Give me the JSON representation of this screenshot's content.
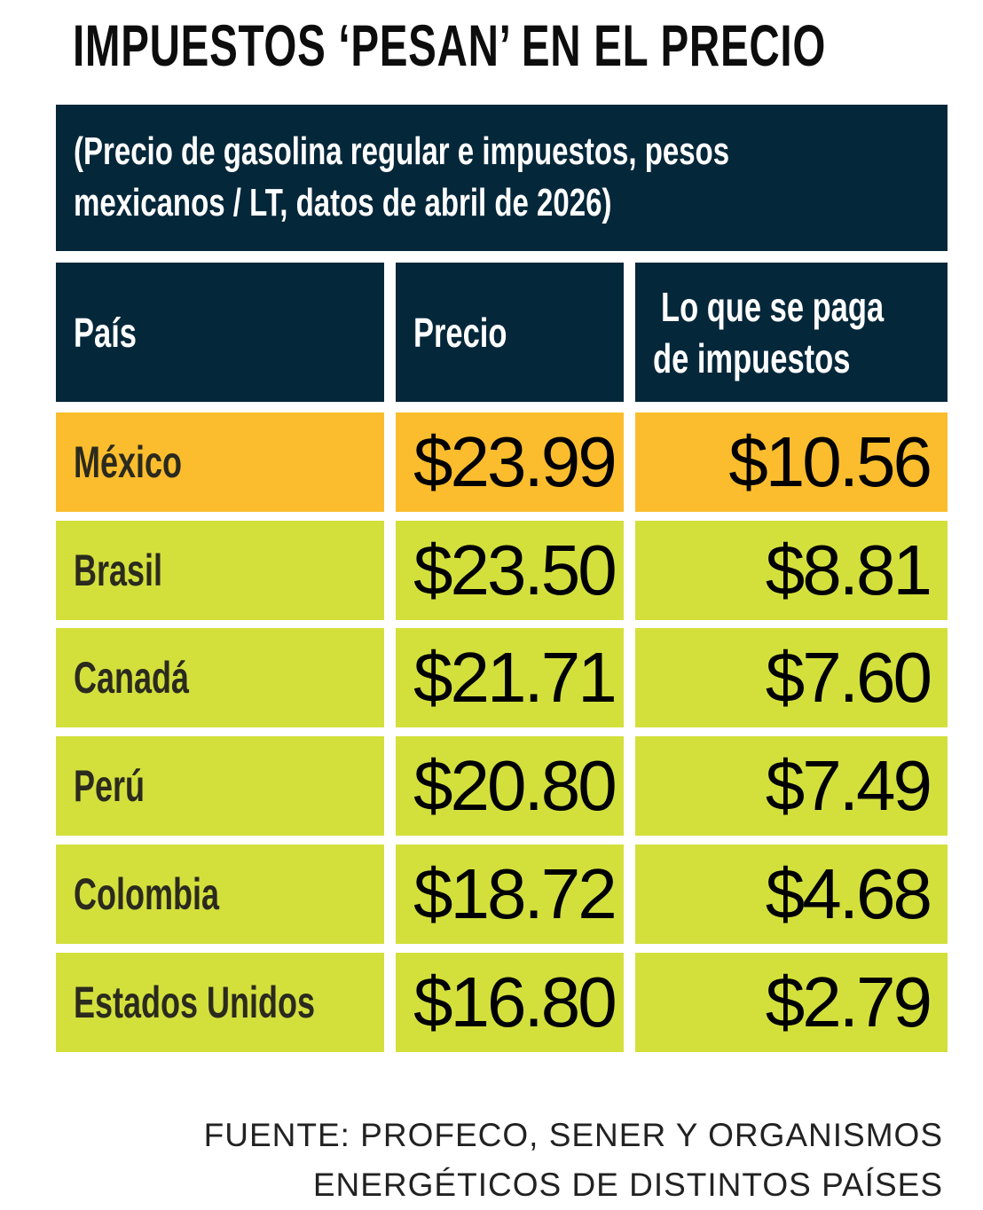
{
  "title": "IMPUESTOS ‘PESAN’ EN EL PRECIO",
  "subtitle_line1": "(Precio de gasolina regular e impuestos, pesos",
  "subtitle_line2": "mexicanos / LT, datos de abril de 2026)",
  "headers": {
    "country": "País",
    "price": "Precio",
    "tax_line1": "Lo que se paga",
    "tax_line2": "de impuestos"
  },
  "rows": [
    {
      "country": "México",
      "price": "$23.99",
      "tax": "$10.56"
    },
    {
      "country": "Brasil",
      "price": "$23.50",
      "tax": "$8.81"
    },
    {
      "country": "Canadá",
      "price": "$21.71",
      "tax": "$7.60"
    },
    {
      "country": "Perú",
      "price": "$20.80",
      "tax": "$7.49"
    },
    {
      "country": "Colombia",
      "price": "$18.72",
      "tax": "$4.68"
    },
    {
      "country": "Estados Unidos",
      "price": "$16.80",
      "tax": "$2.79"
    }
  ],
  "source_line1": "FUENTE: PROFECO, SENER Y ORGANISMOS",
  "source_line2": "ENERGÉTICOS DE DISTINTOS PAÍSES",
  "colors": {
    "header_bg": "#05273a",
    "highlight_row": "#fbbd2d",
    "row_bg": "#d3e03c"
  },
  "chart_data": {
    "type": "table",
    "title": "IMPUESTOS ‘PESAN’ EN EL PRECIO",
    "subtitle": "(Precio de gasolina regular e impuestos, pesos mexicanos / LT, datos de abril de 2026)",
    "columns": [
      "País",
      "Precio",
      "Lo que se paga de impuestos"
    ],
    "categories": [
      "México",
      "Brasil",
      "Canadá",
      "Perú",
      "Colombia",
      "Estados Unidos"
    ],
    "series": [
      {
        "name": "Precio",
        "values": [
          23.99,
          23.5,
          21.71,
          20.8,
          18.72,
          16.8
        ]
      },
      {
        "name": "Lo que se paga de impuestos",
        "values": [
          10.56,
          8.81,
          7.6,
          7.49,
          4.68,
          2.79
        ]
      }
    ],
    "source": "FUENTE: PROFECO, SENER Y ORGANISMOS ENERGÉTICOS DE DISTINTOS PAÍSES"
  }
}
